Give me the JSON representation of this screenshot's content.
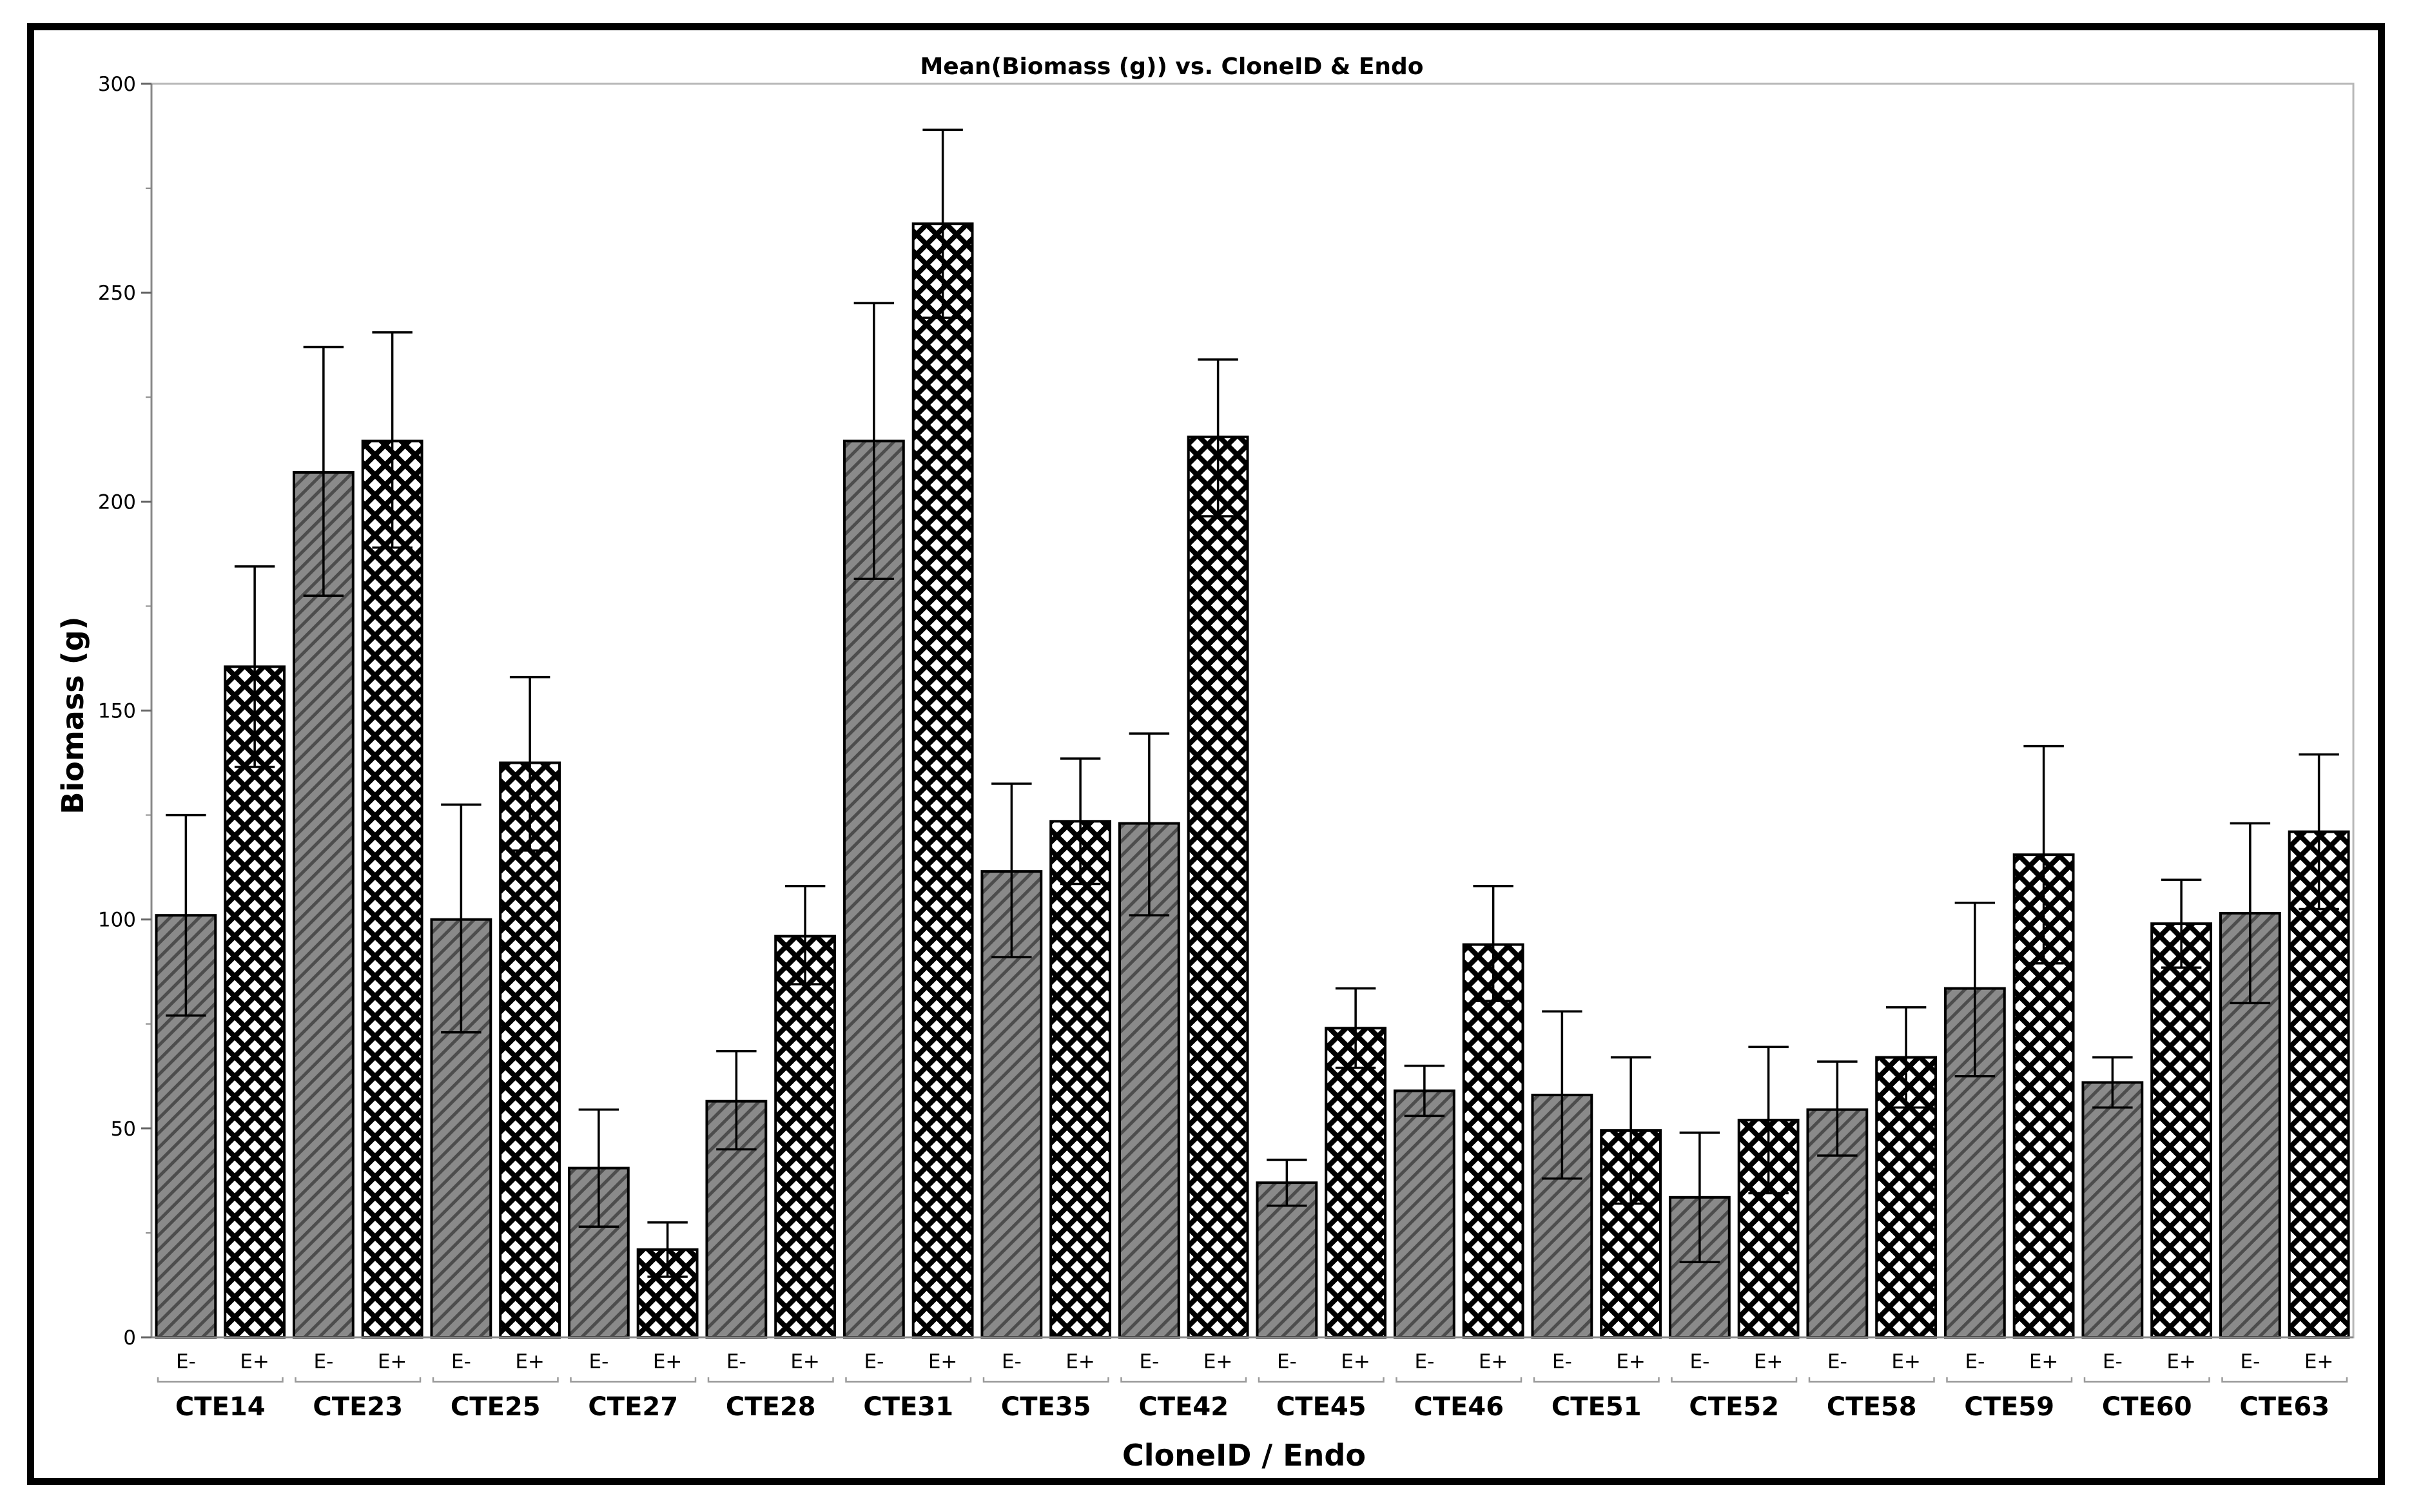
{
  "chart_data": {
    "type": "bar",
    "title": "Mean(Biomass (g)) vs. CloneID & Endo",
    "xlabel": "CloneID / Endo",
    "ylabel": "Biomass (g)",
    "ylim": [
      0,
      300
    ],
    "yticks": [
      0,
      50,
      100,
      150,
      200,
      250,
      300
    ],
    "grid": false,
    "error_bars": true,
    "categories": [
      "CTE14",
      "CTE23",
      "CTE25",
      "CTE27",
      "CTE28",
      "CTE31",
      "CTE35",
      "CTE42",
      "CTE45",
      "CTE46",
      "CTE51",
      "CTE52",
      "CTE58",
      "CTE59",
      "CTE60",
      "CTE63"
    ],
    "series": [
      {
        "name": "E-",
        "pattern": "diagonal-hatch",
        "color": "#8a8a8a",
        "values": [
          101,
          207,
          100,
          40.5,
          56.5,
          214.5,
          111.5,
          123,
          37,
          59,
          58,
          33.5,
          54.5,
          83.5,
          61,
          101.5
        ],
        "err_upper": [
          125,
          237,
          127.5,
          54.5,
          68.5,
          247.5,
          132.5,
          144.5,
          42.5,
          65,
          78,
          49,
          66,
          104,
          67,
          123
        ],
        "err_lower": [
          77,
          177.5,
          73,
          26.5,
          45,
          181.5,
          91,
          101,
          31.5,
          53,
          38,
          18,
          43.5,
          62.5,
          55,
          80
        ]
      },
      {
        "name": "E+",
        "pattern": "crosshatch",
        "color": "#ffffff",
        "values": [
          160.5,
          214.5,
          137.5,
          21,
          96,
          266.5,
          123.5,
          215.5,
          74,
          94,
          49.5,
          52,
          67,
          115.5,
          99,
          121
        ],
        "err_upper": [
          184.5,
          240.5,
          158,
          27.5,
          108,
          289,
          138.5,
          234,
          83.5,
          108,
          67,
          69.5,
          79,
          141.5,
          109.5,
          139.5
        ],
        "err_lower": [
          136.5,
          189,
          116.5,
          14.5,
          84.5,
          244,
          108.5,
          196.5,
          64.5,
          80.5,
          32,
          34.5,
          55,
          89.5,
          88.5,
          102.5
        ]
      }
    ]
  }
}
